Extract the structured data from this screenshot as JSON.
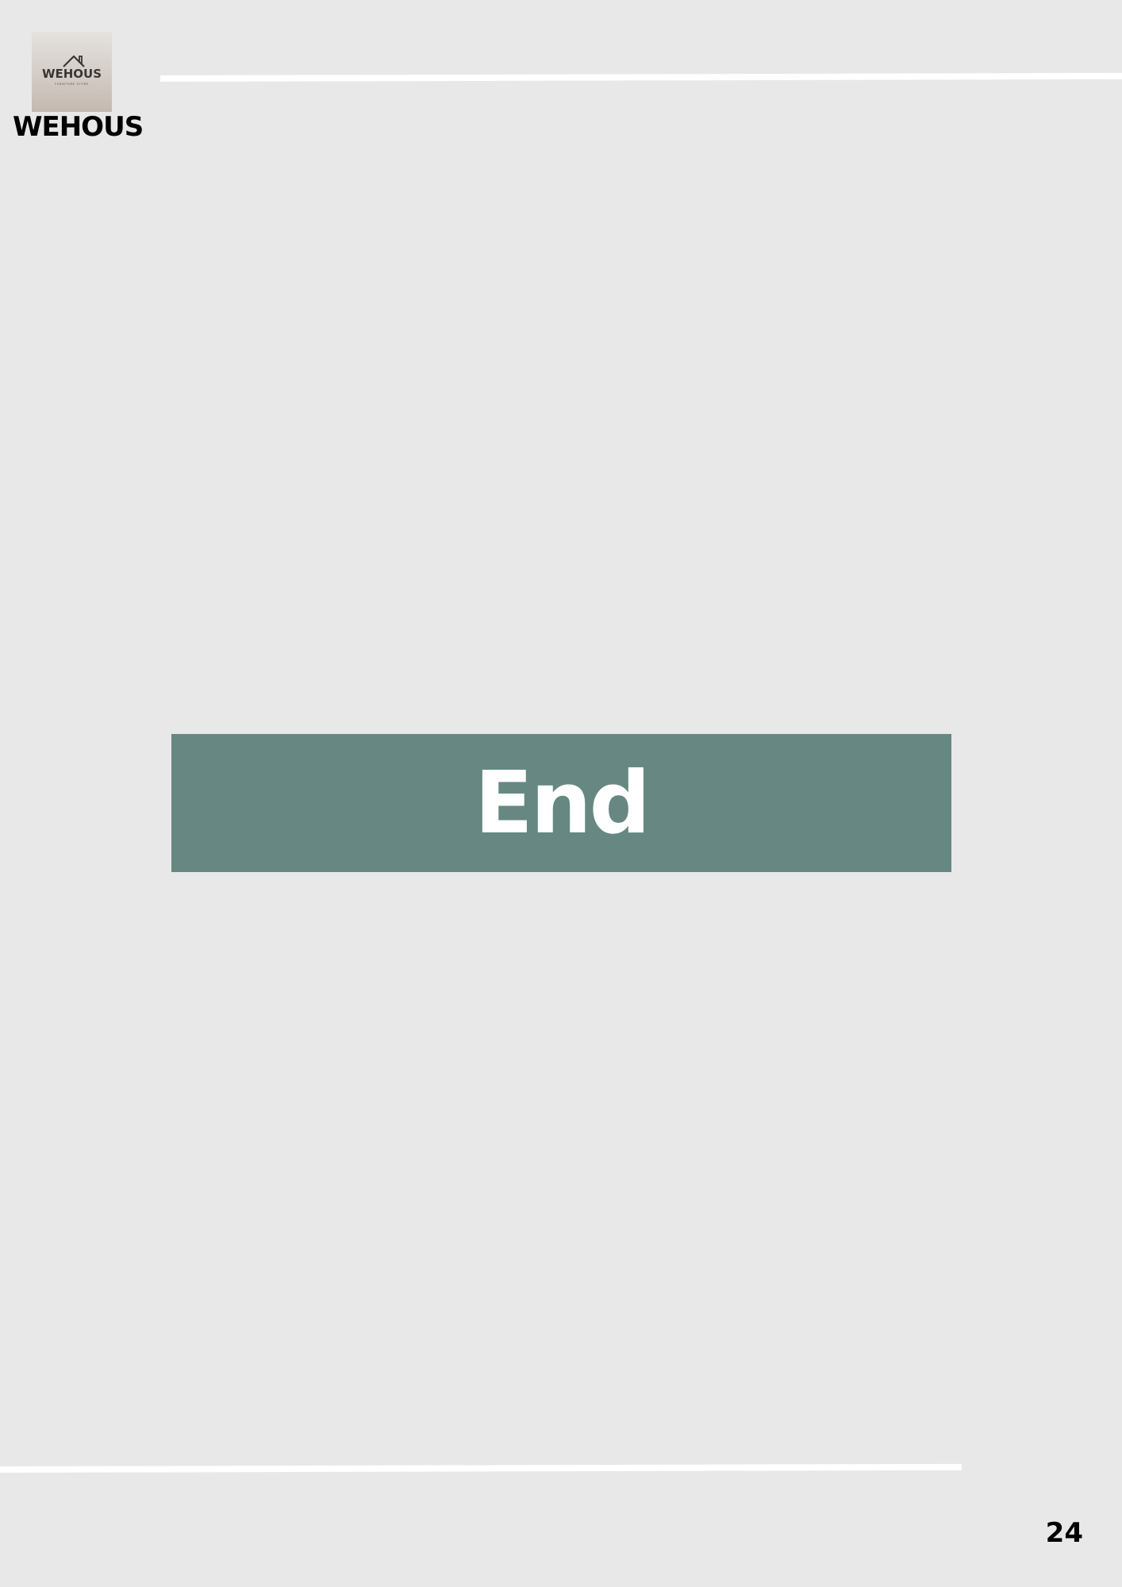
{
  "header": {
    "logo": {
      "wordmark": "WEHOUS",
      "tagline": "FURNITURE STORE",
      "icon": "house-icon"
    },
    "brand_name": "WEHOUS"
  },
  "main": {
    "banner_text": "End"
  },
  "footer": {
    "page_number": "24"
  },
  "colors": {
    "page_background": "#e8e8e8",
    "banner_background": "#678882",
    "banner_text": "#ffffff",
    "rule_lines": "#ffffff",
    "logo_text": "#3a3733"
  }
}
